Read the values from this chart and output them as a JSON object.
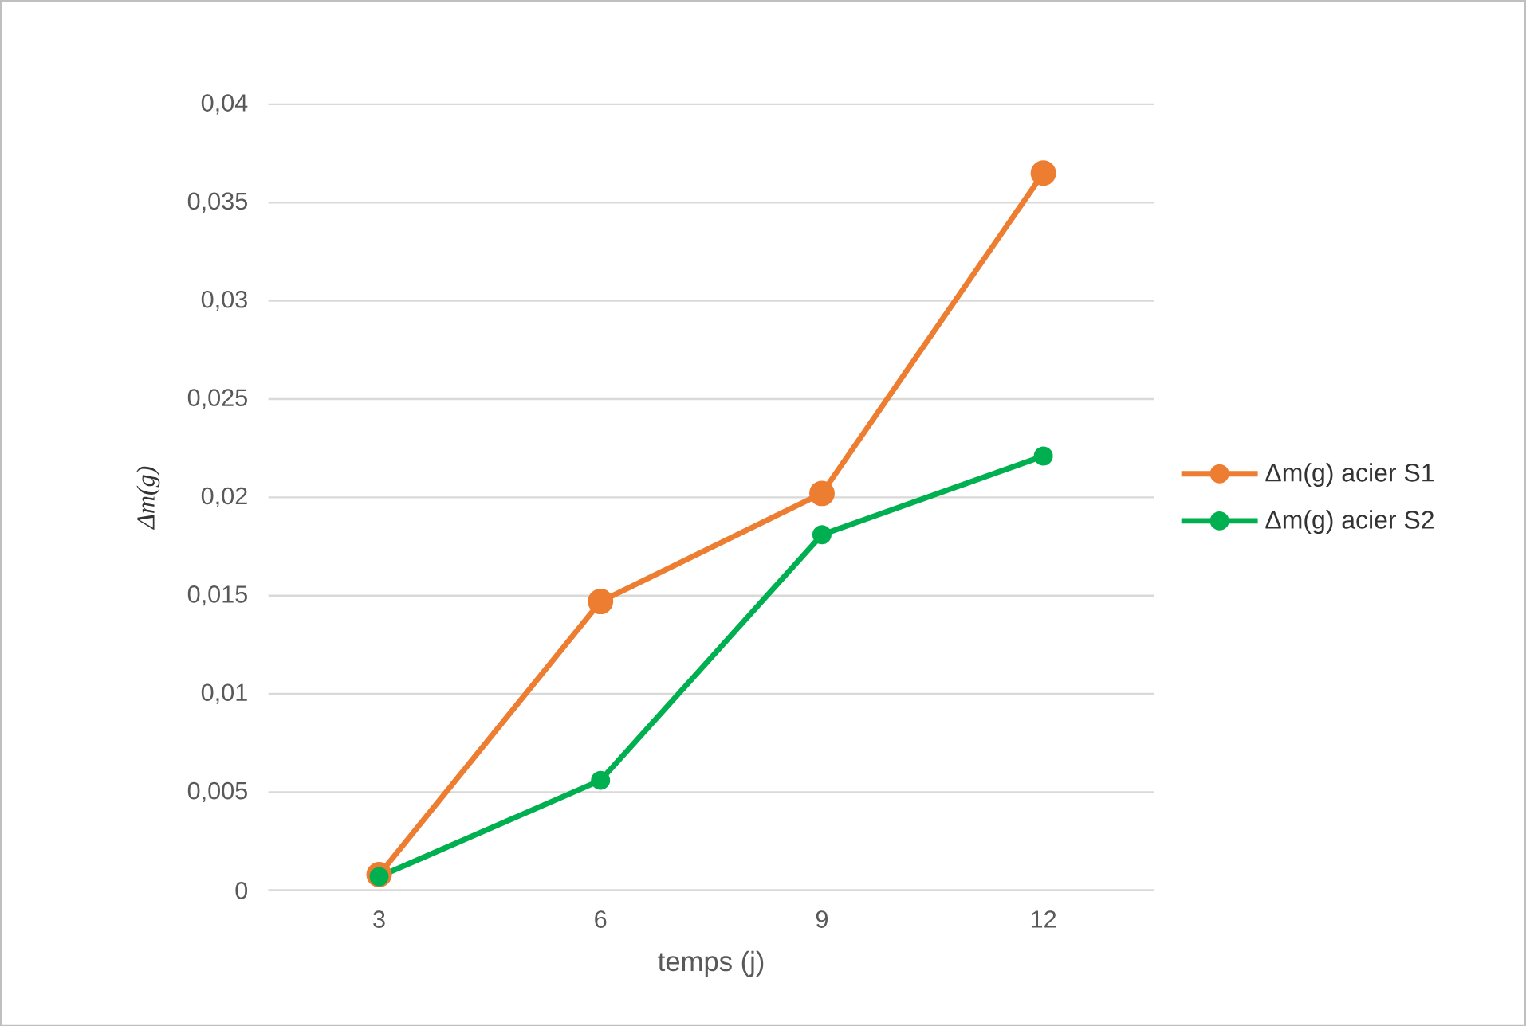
{
  "chart_data": {
    "type": "line",
    "categories": [
      "3",
      "6",
      "9",
      "12"
    ],
    "xlabel": "temps (j)",
    "ylabel": "Δm(g)",
    "series": [
      {
        "name": "Δm(g) acier S1",
        "color": "#ed7d31",
        "values": [
          0.0008,
          0.0147,
          0.0202,
          0.0365
        ]
      },
      {
        "name": "Δm(g) acier S2",
        "color": "#00b050",
        "values": [
          0.0007,
          0.0056,
          0.0181,
          0.0221
        ]
      }
    ],
    "ylim": [
      0,
      0.04
    ],
    "yticks": [
      {
        "value": 0,
        "label": "0"
      },
      {
        "value": 0.005,
        "label": "0,005"
      },
      {
        "value": 0.01,
        "label": "0,01"
      },
      {
        "value": 0.015,
        "label": "0,015"
      },
      {
        "value": 0.02,
        "label": "0,02"
      },
      {
        "value": 0.025,
        "label": "0,025"
      },
      {
        "value": 0.03,
        "label": "0,03"
      },
      {
        "value": 0.035,
        "label": "0,035"
      },
      {
        "value": 0.04,
        "label": "0,04"
      }
    ],
    "grid": "y",
    "legend": "right",
    "marker": "circle",
    "line_style": "solid"
  }
}
